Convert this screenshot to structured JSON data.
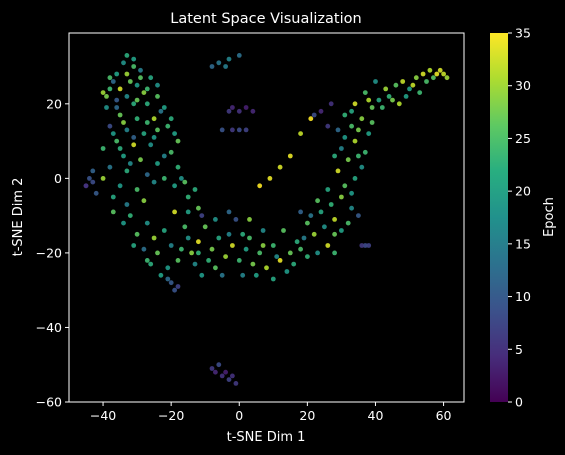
{
  "chart_data": {
    "type": "scatter",
    "title": "Latent Space Visualization",
    "xlabel": "t-SNE Dim 1",
    "ylabel": "t-SNE Dim 2",
    "xlim": [
      -50,
      66
    ],
    "ylim": [
      -60,
      39
    ],
    "xticks": [
      -40,
      -20,
      0,
      20,
      40,
      60
    ],
    "yticks": [
      -60,
      -40,
      -20,
      0,
      20
    ],
    "grid": false,
    "background": "#000000",
    "colormap": "viridis",
    "colorbar": {
      "label": "Epoch",
      "range": [
        0,
        35
      ],
      "ticks": [
        0,
        5,
        10,
        15,
        20,
        25,
        30,
        35
      ]
    },
    "points": [
      [
        -33,
        33,
        22
      ],
      [
        -34,
        31,
        18
      ],
      [
        -31,
        30,
        25
      ],
      [
        -36,
        28,
        20
      ],
      [
        -33,
        28,
        30
      ],
      [
        -29,
        29,
        15
      ],
      [
        -37,
        26,
        12
      ],
      [
        -32,
        26,
        27
      ],
      [
        -30,
        25,
        19
      ],
      [
        -35,
        24,
        33
      ],
      [
        -38,
        24,
        24
      ],
      [
        -33,
        22,
        17
      ],
      [
        -28,
        23,
        29
      ],
      [
        -36,
        21,
        10
      ],
      [
        -31,
        20,
        22
      ],
      [
        -26,
        27,
        21
      ],
      [
        -24,
        22,
        26
      ],
      [
        -23,
        18,
        14
      ],
      [
        -21,
        14,
        24
      ],
      [
        -19,
        12,
        20
      ],
      [
        -25,
        16,
        31
      ],
      [
        -39,
        19,
        18
      ],
      [
        -35,
        17,
        27
      ],
      [
        -30,
        16,
        23
      ],
      [
        -38,
        14,
        8
      ],
      [
        -33,
        13,
        16
      ],
      [
        -28,
        12,
        21
      ],
      [
        -36,
        10,
        25
      ],
      [
        -31,
        9,
        33
      ],
      [
        -26,
        9,
        18
      ],
      [
        -40,
        8,
        24
      ],
      [
        -34,
        6,
        20
      ],
      [
        -29,
        5,
        28
      ],
      [
        -38,
        3,
        14
      ],
      [
        -33,
        2,
        22
      ],
      [
        -27,
        1,
        12
      ],
      [
        -40,
        0,
        30
      ],
      [
        -35,
        -2,
        19
      ],
      [
        -30,
        -3,
        25
      ],
      [
        -25,
        -1,
        17
      ],
      [
        -22,
        0,
        24
      ],
      [
        -19,
        -2,
        20
      ],
      [
        -16,
        -1,
        26
      ],
      [
        -13,
        -3,
        22
      ],
      [
        -37,
        -5,
        21
      ],
      [
        -33,
        -7,
        15
      ],
      [
        -28,
        -6,
        29
      ],
      [
        -44,
        0,
        9
      ],
      [
        -45,
        -2,
        6
      ],
      [
        -43,
        2,
        11
      ],
      [
        -32,
        -10,
        23
      ],
      [
        -27,
        -12,
        18
      ],
      [
        -30,
        -15,
        26
      ],
      [
        -25,
        -16,
        30
      ],
      [
        -22,
        -14,
        21
      ],
      [
        -28,
        -19,
        13
      ],
      [
        -24,
        -20,
        27
      ],
      [
        -20,
        -18,
        16
      ],
      [
        -26,
        -23,
        22
      ],
      [
        -21,
        -24,
        19
      ],
      [
        -17,
        -19,
        24
      ],
      [
        -14,
        -20,
        29
      ],
      [
        -12,
        -17,
        34
      ],
      [
        -16,
        -13,
        25
      ],
      [
        -19,
        -9,
        33
      ],
      [
        -15,
        -9,
        20
      ],
      [
        -11,
        -10,
        7
      ],
      [
        -7,
        -11,
        18
      ],
      [
        -10,
        -13,
        27
      ],
      [
        -6,
        -16,
        21
      ],
      [
        -13,
        -23,
        17
      ],
      [
        -9,
        -22,
        23
      ],
      [
        -11,
        -26,
        19
      ],
      [
        -7,
        -24,
        26
      ],
      [
        -4,
        -21,
        30
      ],
      [
        -2,
        -18,
        33
      ],
      [
        -5,
        -26,
        14
      ],
      [
        0,
        -22,
        24
      ],
      [
        2,
        -19,
        20
      ],
      [
        4,
        -23,
        28
      ],
      [
        1,
        -26,
        16
      ],
      [
        6,
        -20,
        25
      ],
      [
        8,
        -24,
        31
      ],
      [
        10,
        -27,
        21
      ],
      [
        12,
        -22,
        34
      ],
      [
        14,
        -25,
        19
      ],
      [
        10,
        -18,
        24
      ],
      [
        15,
        -20,
        27
      ],
      [
        17,
        -17,
        22
      ],
      [
        19,
        -16,
        15
      ],
      [
        22,
        -15,
        30
      ],
      [
        25,
        -13,
        18
      ],
      [
        20,
        -12,
        26
      ],
      [
        24,
        -9,
        21
      ],
      [
        28,
        -11,
        32
      ],
      [
        30,
        -14,
        20
      ],
      [
        32,
        -12,
        25
      ],
      [
        27,
        -7,
        23
      ],
      [
        30,
        -5,
        29
      ],
      [
        33,
        -8,
        17
      ],
      [
        35,
        -10,
        10
      ],
      [
        31,
        -2,
        26
      ],
      [
        34,
        0,
        21
      ],
      [
        29,
        2,
        33
      ],
      [
        36,
        3,
        18
      ],
      [
        32,
        5,
        28
      ],
      [
        37,
        7,
        24
      ],
      [
        30,
        8,
        16
      ],
      [
        34,
        10,
        31
      ],
      [
        38,
        12,
        20
      ],
      [
        33,
        14,
        25
      ],
      [
        29,
        13,
        12
      ],
      [
        36,
        16,
        29
      ],
      [
        31,
        17,
        23
      ],
      [
        26,
        14,
        6
      ],
      [
        24,
        18,
        4
      ],
      [
        22,
        17,
        8
      ],
      [
        27,
        20,
        5
      ],
      [
        39,
        19,
        27
      ],
      [
        34,
        20,
        33
      ],
      [
        41,
        21,
        21
      ],
      [
        37,
        23,
        25
      ],
      [
        43,
        24,
        30
      ],
      [
        40,
        26,
        18
      ],
      [
        46,
        25,
        26
      ],
      [
        44,
        22,
        23
      ],
      [
        48,
        26,
        32
      ],
      [
        50,
        24,
        20
      ],
      [
        52,
        27,
        29
      ],
      [
        54,
        28,
        33
      ],
      [
        56,
        29,
        31
      ],
      [
        58,
        28,
        34
      ],
      [
        60,
        28,
        32
      ],
      [
        55,
        26,
        25
      ],
      [
        53,
        23,
        24
      ],
      [
        47,
        20,
        31
      ],
      [
        37,
        -18,
        8
      ],
      [
        36,
        -18,
        6
      ],
      [
        38,
        -18,
        7
      ],
      [
        -40,
        23,
        30
      ],
      [
        -38,
        27,
        25
      ],
      [
        -27,
        20,
        22
      ],
      [
        -25,
        11,
        19
      ],
      [
        -22,
        6,
        16
      ],
      [
        -18,
        3,
        23
      ],
      [
        -12,
        -8,
        27
      ],
      [
        -3,
        -9,
        12
      ],
      [
        -1,
        -11,
        9
      ],
      [
        1,
        -15,
        22
      ],
      [
        3,
        -11,
        29
      ],
      [
        7,
        -14,
        17
      ],
      [
        13,
        -14,
        26
      ],
      [
        18,
        -9,
        11
      ],
      [
        20,
        -21,
        23
      ],
      [
        23,
        -20,
        18
      ],
      [
        26,
        -18,
        33
      ],
      [
        28,
        -20,
        24
      ],
      [
        -20,
        -28,
        10
      ],
      [
        -19,
        -30,
        9
      ],
      [
        -18,
        -29,
        7
      ],
      [
        -21,
        -27,
        12
      ],
      [
        -4,
        30,
        15
      ],
      [
        -6,
        31,
        14
      ],
      [
        -3,
        32,
        16
      ],
      [
        0,
        33,
        13
      ],
      [
        -8,
        30,
        12
      ],
      [
        -2,
        19,
        4
      ],
      [
        0,
        18,
        5
      ],
      [
        2,
        19,
        3
      ],
      [
        4,
        18,
        4
      ],
      [
        -3,
        18,
        6
      ],
      [
        -2,
        13,
        6
      ],
      [
        0,
        13,
        8
      ],
      [
        2,
        13,
        7
      ],
      [
        -5,
        13,
        9
      ],
      [
        -8,
        -51,
        6
      ],
      [
        -7,
        -52,
        4
      ],
      [
        -5,
        -53,
        5
      ],
      [
        -3,
        -54,
        7
      ],
      [
        -1,
        -55,
        6
      ],
      [
        -4,
        -52,
        3
      ],
      [
        -6,
        -50,
        8
      ],
      [
        -2,
        -53,
        5
      ],
      [
        9,
        0,
        34
      ],
      [
        12,
        3,
        33
      ],
      [
        6,
        -2,
        35
      ],
      [
        15,
        6,
        34
      ],
      [
        18,
        12,
        32
      ],
      [
        21,
        16,
        35
      ],
      [
        -45,
        -2,
        5
      ],
      [
        -43,
        -1,
        8
      ],
      [
        -42,
        -4,
        10
      ],
      [
        -31,
        32,
        20
      ],
      [
        -29,
        27,
        26
      ],
      [
        -27,
        24,
        24
      ],
      [
        -24,
        25,
        18
      ],
      [
        -22,
        19,
        20
      ],
      [
        -20,
        16,
        22
      ],
      [
        -18,
        10,
        27
      ],
      [
        -34,
        15,
        29
      ],
      [
        -31,
        11,
        11
      ],
      [
        -27,
        15,
        24
      ],
      [
        -24,
        13,
        26
      ],
      [
        -37,
        12,
        19
      ],
      [
        -35,
        8,
        22
      ],
      [
        -32,
        4,
        17
      ],
      [
        -24,
        4,
        20
      ],
      [
        -20,
        7,
        25
      ],
      [
        -17,
        0,
        18
      ],
      [
        -15,
        -5,
        23
      ],
      [
        -37,
        -9,
        26
      ],
      [
        -34,
        -12,
        19
      ],
      [
        -31,
        -18,
        21
      ],
      [
        -27,
        -22,
        24
      ],
      [
        -23,
        -26,
        20
      ],
      [
        -18,
        -22,
        26
      ],
      [
        -15,
        -16,
        18
      ],
      [
        -12,
        -20,
        23
      ],
      [
        -8,
        -19,
        28
      ],
      [
        -3,
        -15,
        16
      ],
      [
        3,
        -16,
        25
      ],
      [
        5,
        -26,
        20
      ],
      [
        7,
        -18,
        29
      ],
      [
        11,
        -21,
        17
      ],
      [
        16,
        -23,
        22
      ],
      [
        18,
        -19,
        25
      ],
      [
        21,
        -10,
        14
      ],
      [
        23,
        -6,
        26
      ],
      [
        26,
        -3,
        21
      ],
      [
        28,
        -15,
        27
      ],
      [
        33,
        -4,
        19
      ],
      [
        35,
        6,
        24
      ],
      [
        28,
        6,
        22
      ],
      [
        31,
        11,
        19
      ],
      [
        35,
        13,
        28
      ],
      [
        39,
        15,
        26
      ],
      [
        33,
        18,
        21
      ],
      [
        38,
        21,
        31
      ],
      [
        42,
        19,
        24
      ],
      [
        45,
        21,
        28
      ],
      [
        49,
        22,
        20
      ],
      [
        51,
        25,
        32
      ],
      [
        57,
        27,
        26
      ],
      [
        59,
        29,
        33
      ],
      [
        61,
        27,
        30
      ],
      [
        -39,
        22,
        28
      ],
      [
        -36,
        19,
        12
      ],
      [
        -30,
        21,
        27
      ]
    ]
  }
}
